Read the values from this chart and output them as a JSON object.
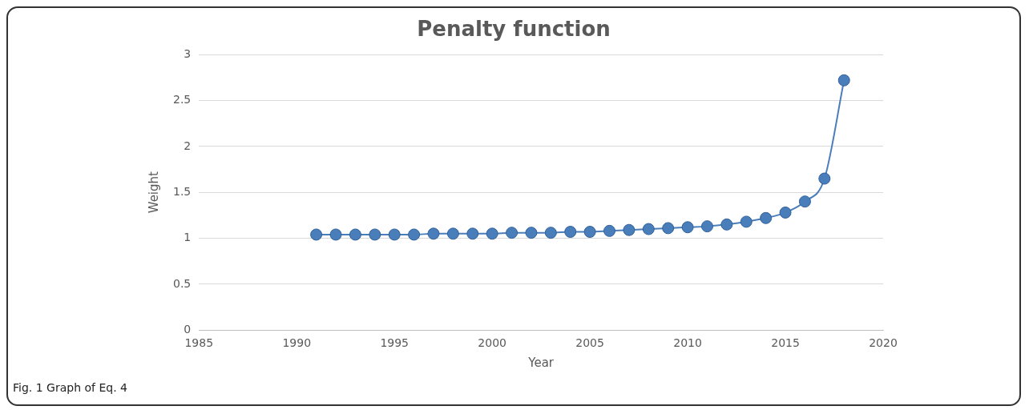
{
  "chart_data": {
    "type": "line",
    "title": "Penalty function",
    "xlabel": "Year",
    "ylabel": "Weight",
    "x": [
      1991,
      1992,
      1993,
      1994,
      1995,
      1996,
      1997,
      1998,
      1999,
      2000,
      2001,
      2002,
      2003,
      2004,
      2005,
      2006,
      2007,
      2008,
      2009,
      2010,
      2011,
      2012,
      2013,
      2014,
      2015,
      2016,
      2017,
      2018
    ],
    "series": [
      {
        "color": "#4a7ebb",
        "values": [
          1.04,
          1.04,
          1.04,
          1.04,
          1.04,
          1.04,
          1.05,
          1.05,
          1.05,
          1.05,
          1.06,
          1.06,
          1.06,
          1.07,
          1.07,
          1.08,
          1.09,
          1.1,
          1.11,
          1.12,
          1.13,
          1.15,
          1.18,
          1.22,
          1.28,
          1.4,
          1.65,
          2.72
        ]
      }
    ],
    "xlim": [
      1985,
      2020
    ],
    "xticks": [
      1985,
      1990,
      1995,
      2000,
      2005,
      2010,
      2015,
      2020
    ],
    "ylim": [
      0,
      3
    ],
    "yticks": [
      0,
      0.5,
      1,
      1.5,
      2,
      2.5,
      3
    ],
    "grid": "y",
    "legend": false,
    "marker": "circle",
    "line_style": "solid",
    "annotations": [
      "Fig. 1 Graph of Eq. 4"
    ]
  }
}
